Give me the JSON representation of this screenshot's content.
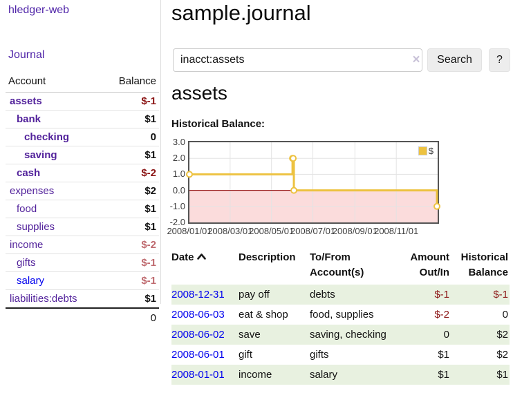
{
  "app": {
    "brand": "hledger-web",
    "nav": {
      "journal": "Journal"
    }
  },
  "sidebar": {
    "columns": {
      "account": "Account",
      "balance": "Balance"
    },
    "accounts": [
      {
        "name": "assets",
        "balance": "$-1"
      },
      {
        "name": "bank",
        "balance": "$1"
      },
      {
        "name": "checking",
        "balance": "0"
      },
      {
        "name": "saving",
        "balance": "$1"
      },
      {
        "name": "cash",
        "balance": "$-2"
      },
      {
        "name": "expenses",
        "balance": "$2"
      },
      {
        "name": "food",
        "balance": "$1"
      },
      {
        "name": "supplies",
        "balance": "$1"
      },
      {
        "name": "income",
        "balance": "$-2"
      },
      {
        "name": "gifts",
        "balance": "$-1"
      },
      {
        "name": "salary",
        "balance": "$-1"
      },
      {
        "name": "liabilities:debts",
        "balance": "$1"
      }
    ],
    "total": "0"
  },
  "header": {
    "title": "sample.journal"
  },
  "search": {
    "value": "inacct:assets",
    "clear_icon": "×",
    "button_label": "Search",
    "help_label": "?"
  },
  "account_page": {
    "heading": "assets",
    "chart_title": "Historical Balance:"
  },
  "chart_data": {
    "type": "line",
    "title": "Historical Balance:",
    "step": true,
    "xlim": [
      "2008-01-01",
      "2009-01-01"
    ],
    "ylim": [
      -2,
      3
    ],
    "y_ticks": [
      "3.0",
      "2.0",
      "1.0",
      "0.0",
      "-1.0",
      "-2.0"
    ],
    "y_tick_values": [
      3,
      2,
      1,
      0,
      -1,
      -2
    ],
    "x_ticks": [
      "2008/01/01",
      "2008/03/01",
      "2008/05/01",
      "2008/07/01",
      "2008/09/01",
      "2008/11/01"
    ],
    "grid": true,
    "legend_position": "top-right",
    "series": [
      {
        "name": "$",
        "color": "#edc240",
        "points": [
          {
            "x": "2008-01-01",
            "y": 1
          },
          {
            "x": "2008-06-01",
            "y": 2
          },
          {
            "x": "2008-06-02",
            "y": 2
          },
          {
            "x": "2008-06-03",
            "y": 0
          },
          {
            "x": "2008-12-31",
            "y": -1
          }
        ]
      }
    ],
    "colors": {
      "line": "#edc240",
      "marker_fill": "#ffffff",
      "negative_region_fill": "#fbdcdc",
      "zero_line": "#8b0000",
      "gridline": "#e3e3e3",
      "plot_border": "#545454"
    }
  },
  "register": {
    "columns": [
      "Date",
      "Description",
      "To/From Account(s)",
      "Amount Out/In",
      "Historical Balance"
    ],
    "rows": [
      {
        "date": "2008-12-31",
        "description": "pay off",
        "accounts": "debts",
        "amount": "$-1",
        "balance": "$-1"
      },
      {
        "date": "2008-06-03",
        "description": "eat & shop",
        "accounts": "food, supplies",
        "amount": "$-2",
        "balance": "0"
      },
      {
        "date": "2008-06-02",
        "description": "save",
        "accounts": "saving, checking",
        "amount": "0",
        "balance": "$2"
      },
      {
        "date": "2008-06-01",
        "description": "gift",
        "accounts": "gifts",
        "amount": "$1",
        "balance": "$2"
      },
      {
        "date": "2008-01-01",
        "description": "income",
        "accounts": "salary",
        "amount": "$1",
        "balance": "$1"
      }
    ]
  },
  "colors": {
    "link_purple": "#52229b",
    "link_blue": "#0000ee",
    "negative_strong": "#8b1515",
    "negative_muted": "#bf6a6f",
    "zebra_green": "#e8f1e0",
    "accent_gold": "#edc240"
  }
}
